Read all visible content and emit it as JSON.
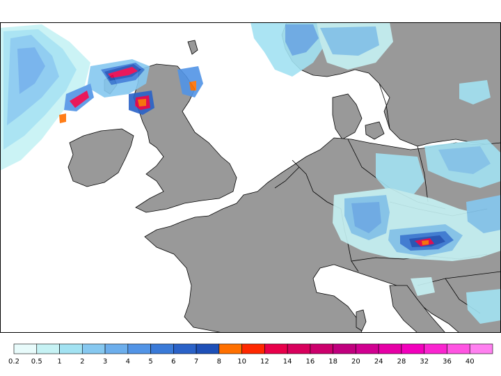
{
  "map": {
    "region": "Northwestern Europe",
    "variable": "precipitation",
    "colors": {
      "land": "#999999",
      "sea": "#ffffff",
      "coast": "#000000",
      "border": "#000000"
    }
  },
  "legend": {
    "labels": [
      "0.2",
      "0.5",
      "1",
      "2",
      "3",
      "4",
      "5",
      "6",
      "7",
      "8",
      "10",
      "12",
      "14",
      "16",
      "18",
      "20",
      "24",
      "28",
      "32",
      "36",
      "40"
    ],
    "colors": [
      "#e8fbfb",
      "#c6f2f4",
      "#a2e2f2",
      "#86c8f0",
      "#6caeec",
      "#5294e6",
      "#3a7ad8",
      "#2a62c8",
      "#1e50b8",
      "#ff7000",
      "#ff2800",
      "#e8004a",
      "#d8005c",
      "#cc006c",
      "#c0007e",
      "#d00090",
      "#e600a6",
      "#f200bc",
      "#fa24d0",
      "#ff54e2",
      "#ff80f0"
    ]
  }
}
